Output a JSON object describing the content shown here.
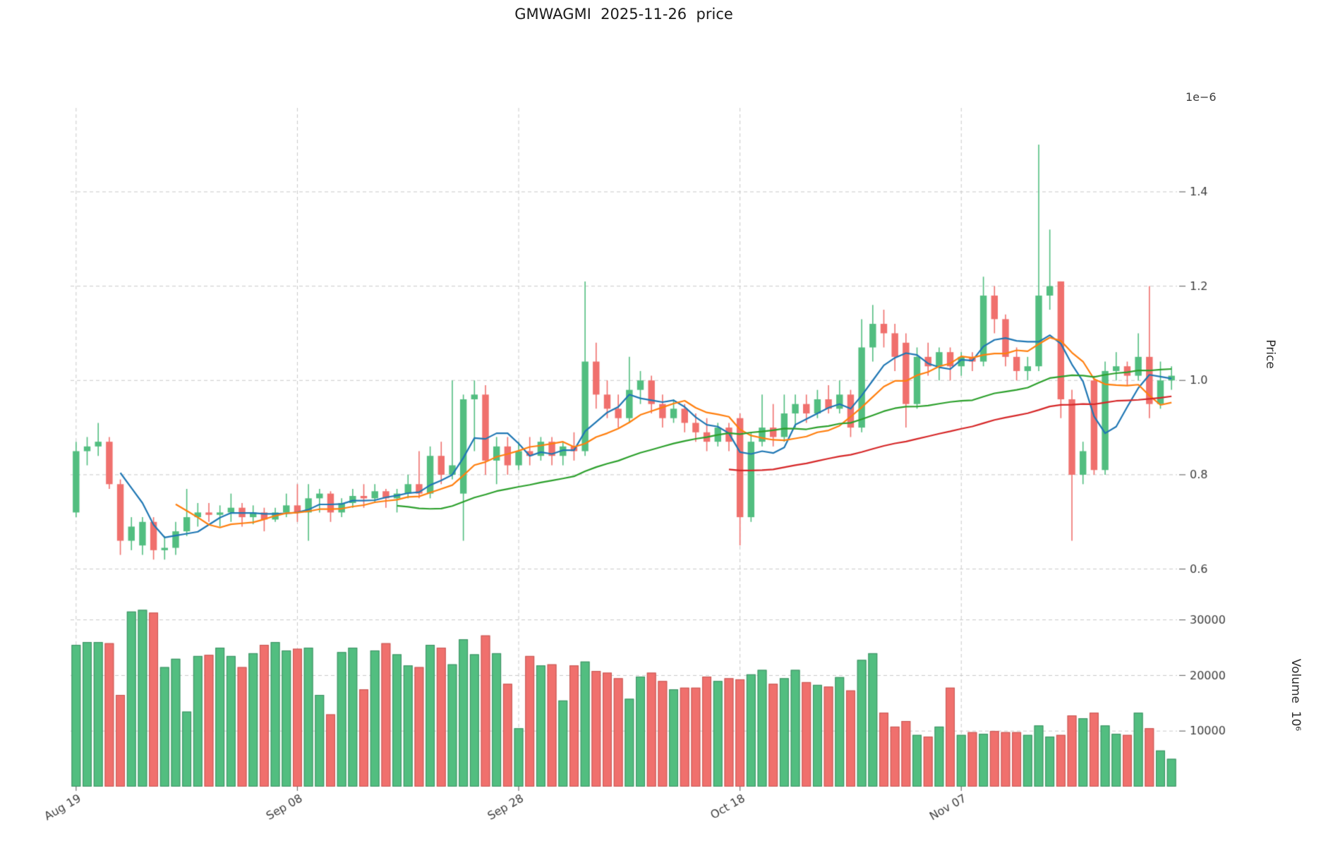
{
  "chart_data": {
    "type": "candlestick",
    "title": "GMWAGMI  2025-11-26  price",
    "ylabel": "Price",
    "ylabel_secondary": "Volume  10⁶",
    "offset_text": "1e−6",
    "price_ticks": [
      0.6,
      0.8,
      1.0,
      1.2,
      1.4
    ],
    "volume_ticks": [
      10000,
      20000,
      30000
    ],
    "x_tick_labels": [
      "Aug 19",
      "Sep 08",
      "Sep 28",
      "Oct 18",
      "Nov 07"
    ],
    "x_tick_indices": [
      0,
      20,
      40,
      60,
      80
    ],
    "price_range": [
      0.55,
      1.56
    ],
    "volume_range": [
      0,
      33000
    ],
    "grid": true,
    "grid_color": "#c9c9c9",
    "up_color": "#52be80",
    "down_color": "#f0706d",
    "up_edge": "#3d8f63",
    "down_edge": "#c55753",
    "ma_periods": [
      5,
      10,
      30,
      60
    ],
    "ma_colors": [
      "#1f77b4",
      "#ff7f0e",
      "#2ca02c",
      "#d62728"
    ],
    "legend_position": "none",
    "ohlc": [
      [
        0.72,
        0.87,
        0.71,
        0.85
      ],
      [
        0.85,
        0.88,
        0.82,
        0.86
      ],
      [
        0.86,
        0.91,
        0.84,
        0.87
      ],
      [
        0.87,
        0.88,
        0.77,
        0.78
      ],
      [
        0.78,
        0.79,
        0.63,
        0.66
      ],
      [
        0.66,
        0.71,
        0.64,
        0.69
      ],
      [
        0.65,
        0.71,
        0.63,
        0.7
      ],
      [
        0.7,
        0.71,
        0.62,
        0.64
      ],
      [
        0.64,
        0.67,
        0.62,
        0.645
      ],
      [
        0.645,
        0.7,
        0.63,
        0.68
      ],
      [
        0.68,
        0.77,
        0.67,
        0.71
      ],
      [
        0.71,
        0.74,
        0.69,
        0.72
      ],
      [
        0.72,
        0.74,
        0.7,
        0.715
      ],
      [
        0.715,
        0.735,
        0.69,
        0.72
      ],
      [
        0.72,
        0.76,
        0.7,
        0.73
      ],
      [
        0.73,
        0.74,
        0.69,
        0.71
      ],
      [
        0.71,
        0.735,
        0.695,
        0.72
      ],
      [
        0.72,
        0.73,
        0.68,
        0.705
      ],
      [
        0.705,
        0.73,
        0.7,
        0.72
      ],
      [
        0.72,
        0.76,
        0.71,
        0.735
      ],
      [
        0.735,
        0.78,
        0.7,
        0.72
      ],
      [
        0.72,
        0.78,
        0.66,
        0.75
      ],
      [
        0.75,
        0.77,
        0.72,
        0.76
      ],
      [
        0.76,
        0.765,
        0.7,
        0.72
      ],
      [
        0.72,
        0.75,
        0.71,
        0.74
      ],
      [
        0.74,
        0.77,
        0.73,
        0.755
      ],
      [
        0.755,
        0.78,
        0.73,
        0.75
      ],
      [
        0.75,
        0.78,
        0.74,
        0.765
      ],
      [
        0.765,
        0.77,
        0.73,
        0.75
      ],
      [
        0.75,
        0.77,
        0.72,
        0.76
      ],
      [
        0.76,
        0.8,
        0.75,
        0.78
      ],
      [
        0.78,
        0.85,
        0.75,
        0.76
      ],
      [
        0.76,
        0.86,
        0.75,
        0.84
      ],
      [
        0.84,
        0.87,
        0.78,
        0.8
      ],
      [
        0.8,
        1.0,
        0.79,
        0.82
      ],
      [
        0.76,
        0.97,
        0.66,
        0.96
      ],
      [
        0.96,
        1.0,
        0.85,
        0.97
      ],
      [
        0.97,
        0.99,
        0.8,
        0.83
      ],
      [
        0.83,
        0.88,
        0.78,
        0.86
      ],
      [
        0.86,
        0.88,
        0.8,
        0.82
      ],
      [
        0.82,
        0.87,
        0.81,
        0.85
      ],
      [
        0.85,
        0.88,
        0.82,
        0.84
      ],
      [
        0.84,
        0.88,
        0.83,
        0.87
      ],
      [
        0.87,
        0.88,
        0.82,
        0.84
      ],
      [
        0.84,
        0.87,
        0.82,
        0.86
      ],
      [
        0.86,
        0.89,
        0.83,
        0.85
      ],
      [
        0.85,
        1.21,
        0.84,
        1.04
      ],
      [
        1.04,
        1.08,
        0.94,
        0.97
      ],
      [
        0.97,
        1.0,
        0.92,
        0.94
      ],
      [
        0.94,
        0.97,
        0.9,
        0.92
      ],
      [
        0.92,
        1.05,
        0.91,
        0.98
      ],
      [
        0.98,
        1.02,
        0.95,
        1.0
      ],
      [
        1.0,
        1.01,
        0.93,
        0.95
      ],
      [
        0.95,
        0.97,
        0.9,
        0.92
      ],
      [
        0.92,
        0.96,
        0.91,
        0.94
      ],
      [
        0.94,
        0.95,
        0.89,
        0.91
      ],
      [
        0.91,
        0.93,
        0.87,
        0.89
      ],
      [
        0.89,
        0.92,
        0.85,
        0.87
      ],
      [
        0.87,
        0.91,
        0.86,
        0.9
      ],
      [
        0.9,
        0.91,
        0.85,
        0.87
      ],
      [
        0.92,
        0.93,
        0.65,
        0.71
      ],
      [
        0.71,
        0.89,
        0.7,
        0.87
      ],
      [
        0.87,
        0.97,
        0.86,
        0.9
      ],
      [
        0.9,
        0.95,
        0.86,
        0.88
      ],
      [
        0.88,
        0.97,
        0.87,
        0.93
      ],
      [
        0.93,
        0.97,
        0.9,
        0.95
      ],
      [
        0.95,
        0.97,
        0.91,
        0.93
      ],
      [
        0.93,
        0.98,
        0.92,
        0.96
      ],
      [
        0.96,
        0.99,
        0.93,
        0.94
      ],
      [
        0.94,
        1.0,
        0.93,
        0.97
      ],
      [
        0.97,
        0.98,
        0.88,
        0.9
      ],
      [
        0.9,
        1.13,
        0.89,
        1.07
      ],
      [
        1.07,
        1.16,
        1.04,
        1.12
      ],
      [
        1.12,
        1.15,
        1.07,
        1.1
      ],
      [
        1.1,
        1.12,
        1.02,
        1.05
      ],
      [
        1.08,
        1.1,
        0.9,
        0.95
      ],
      [
        0.95,
        1.07,
        0.94,
        1.05
      ],
      [
        1.05,
        1.08,
        1.01,
        1.03
      ],
      [
        1.03,
        1.07,
        1.0,
        1.06
      ],
      [
        1.06,
        1.07,
        1.0,
        1.03
      ],
      [
        1.03,
        1.06,
        1.01,
        1.05
      ],
      [
        1.05,
        1.06,
        1.02,
        1.04
      ],
      [
        1.04,
        1.22,
        1.03,
        1.18
      ],
      [
        1.18,
        1.2,
        1.1,
        1.13
      ],
      [
        1.13,
        1.14,
        1.03,
        1.05
      ],
      [
        1.05,
        1.07,
        1.0,
        1.02
      ],
      [
        1.02,
        1.05,
        1.0,
        1.03
      ],
      [
        1.03,
        1.5,
        1.02,
        1.18
      ],
      [
        1.18,
        1.32,
        1.15,
        1.2
      ],
      [
        1.21,
        1.21,
        0.92,
        0.96
      ],
      [
        0.96,
        0.98,
        0.66,
        0.8
      ],
      [
        0.8,
        0.87,
        0.78,
        0.85
      ],
      [
        1.0,
        1.01,
        0.8,
        0.81
      ],
      [
        0.81,
        1.04,
        0.8,
        1.02
      ],
      [
        1.02,
        1.06,
        1.0,
        1.03
      ],
      [
        1.03,
        1.04,
        0.99,
        1.01
      ],
      [
        1.01,
        1.1,
        1.0,
        1.05
      ],
      [
        1.05,
        1.2,
        0.92,
        0.95
      ],
      [
        0.95,
        1.04,
        0.94,
        1.0
      ],
      [
        1.0,
        1.03,
        0.98,
        1.01
      ]
    ],
    "volume": [
      25500,
      26000,
      26000,
      25800,
      16500,
      31500,
      31800,
      31300,
      21500,
      23000,
      13500,
      23500,
      23700,
      25000,
      23500,
      21500,
      24000,
      25500,
      26000,
      24500,
      24800,
      25000,
      16500,
      13000,
      24200,
      25000,
      17500,
      24500,
      25800,
      23800,
      21800,
      21500,
      25500,
      25000,
      22000,
      26500,
      23800,
      27200,
      24000,
      18500,
      10500,
      23500,
      21800,
      22000,
      15500,
      21800,
      22500,
      20800,
      20500,
      19500,
      15800,
      19800,
      20500,
      19000,
      17500,
      17800,
      17800,
      19800,
      19000,
      19500,
      19300,
      20200,
      21000,
      18500,
      19500,
      21000,
      18800,
      18300,
      18000,
      19700,
      17300,
      22800,
      24000,
      13300,
      10800,
      11800,
      9300,
      9000,
      10800,
      17800,
      9300,
      9800,
      9500,
      10000,
      9800,
      9800,
      9300,
      11000,
      9000,
      9300,
      12800,
      12300,
      13300,
      11000,
      9500,
      9300,
      13300,
      10500,
      6500,
      5000
    ]
  }
}
